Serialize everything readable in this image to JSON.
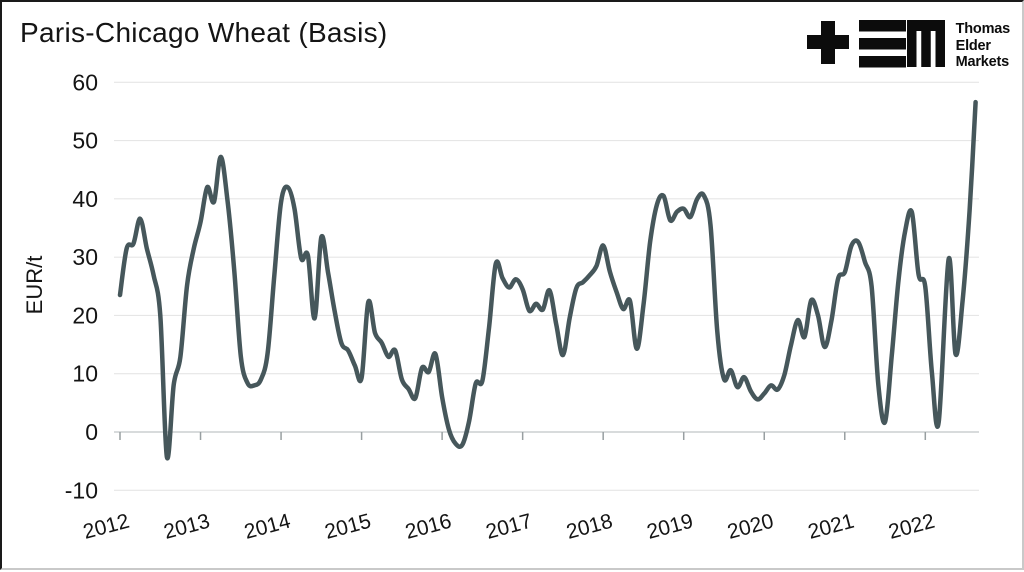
{
  "header": {
    "title": "Paris-Chicago Wheat (Basis)",
    "logo": {
      "lines": [
        "Thomas",
        "Elder",
        "Markets"
      ]
    }
  },
  "chart_data": {
    "type": "line",
    "title": "Paris-Chicago Wheat (Basis)",
    "xlabel": "",
    "ylabel": "EUR/t",
    "ylim": [
      -10,
      60
    ],
    "y_ticks": [
      60,
      50,
      40,
      30,
      20,
      10,
      0,
      -10
    ],
    "x_ticks": [
      2012,
      2013,
      2014,
      2015,
      2016,
      2017,
      2018,
      2019,
      2020,
      2021,
      2022
    ],
    "grid": "horizontal",
    "legend": "none",
    "colors": {
      "line": "#46575b",
      "grid": "#e6e6e6",
      "axis": "#cbcfd0",
      "tick": "#989fa1",
      "text": "#141414"
    },
    "series": [
      {
        "name": "Paris-Chicago wheat basis (EUR/t)",
        "points": [
          [
            2012.0,
            23.5
          ],
          [
            2012.083,
            31.5
          ],
          [
            2012.167,
            32.3
          ],
          [
            2012.25,
            36.6
          ],
          [
            2012.333,
            31.5
          ],
          [
            2012.417,
            26.9
          ],
          [
            2012.5,
            20.0
          ],
          [
            2012.583,
            -4.3
          ],
          [
            2012.667,
            8.1
          ],
          [
            2012.75,
            12.9
          ],
          [
            2012.833,
            25.2
          ],
          [
            2012.917,
            31.5
          ],
          [
            2013.0,
            36.0
          ],
          [
            2013.083,
            42.0
          ],
          [
            2013.167,
            39.5
          ],
          [
            2013.25,
            47.2
          ],
          [
            2013.333,
            40.0
          ],
          [
            2013.417,
            28.0
          ],
          [
            2013.5,
            13.0
          ],
          [
            2013.583,
            8.4
          ],
          [
            2013.667,
            8.0
          ],
          [
            2013.75,
            9.0
          ],
          [
            2013.833,
            13.5
          ],
          [
            2013.917,
            27.0
          ],
          [
            2014.0,
            39.5
          ],
          [
            2014.083,
            42.0
          ],
          [
            2014.167,
            38.3
          ],
          [
            2014.25,
            29.8
          ],
          [
            2014.333,
            30.3
          ],
          [
            2014.417,
            19.5
          ],
          [
            2014.5,
            33.4
          ],
          [
            2014.583,
            27.4
          ],
          [
            2014.667,
            20.6
          ],
          [
            2014.75,
            15.2
          ],
          [
            2014.833,
            14.0
          ],
          [
            2014.917,
            11.4
          ],
          [
            2015.0,
            9.3
          ],
          [
            2015.083,
            22.3
          ],
          [
            2015.167,
            17.0
          ],
          [
            2015.25,
            15.3
          ],
          [
            2015.333,
            12.9
          ],
          [
            2015.417,
            14.0
          ],
          [
            2015.5,
            9.0
          ],
          [
            2015.583,
            7.4
          ],
          [
            2015.667,
            5.8
          ],
          [
            2015.75,
            11.0
          ],
          [
            2015.833,
            10.3
          ],
          [
            2015.917,
            13.4
          ],
          [
            2016.0,
            6.0
          ],
          [
            2016.083,
            0.5
          ],
          [
            2016.167,
            -2.0
          ],
          [
            2016.25,
            -2.2
          ],
          [
            2016.333,
            1.7
          ],
          [
            2016.417,
            8.3
          ],
          [
            2016.5,
            8.8
          ],
          [
            2016.583,
            18.0
          ],
          [
            2016.667,
            28.9
          ],
          [
            2016.75,
            26.4
          ],
          [
            2016.833,
            24.8
          ],
          [
            2016.917,
            26.2
          ],
          [
            2017.0,
            24.5
          ],
          [
            2017.083,
            20.8
          ],
          [
            2017.167,
            22.0
          ],
          [
            2017.25,
            21.0
          ],
          [
            2017.333,
            24.3
          ],
          [
            2017.417,
            18.5
          ],
          [
            2017.5,
            13.2
          ],
          [
            2017.583,
            19.5
          ],
          [
            2017.667,
            24.7
          ],
          [
            2017.75,
            25.7
          ],
          [
            2017.833,
            26.9
          ],
          [
            2017.917,
            28.5
          ],
          [
            2018.0,
            32.0
          ],
          [
            2018.083,
            27.5
          ],
          [
            2018.167,
            24.0
          ],
          [
            2018.25,
            21.1
          ],
          [
            2018.333,
            22.5
          ],
          [
            2018.417,
            14.3
          ],
          [
            2018.5,
            21.7
          ],
          [
            2018.583,
            32.6
          ],
          [
            2018.667,
            39.0
          ],
          [
            2018.75,
            40.5
          ],
          [
            2018.833,
            36.3
          ],
          [
            2018.917,
            37.8
          ],
          [
            2019.0,
            38.3
          ],
          [
            2019.083,
            36.9
          ],
          [
            2019.167,
            40.0
          ],
          [
            2019.25,
            40.6
          ],
          [
            2019.333,
            35.5
          ],
          [
            2019.417,
            17.2
          ],
          [
            2019.5,
            9.1
          ],
          [
            2019.583,
            10.6
          ],
          [
            2019.667,
            7.7
          ],
          [
            2019.75,
            9.4
          ],
          [
            2019.833,
            7.0
          ],
          [
            2019.917,
            5.6
          ],
          [
            2020.0,
            6.6
          ],
          [
            2020.083,
            8.0
          ],
          [
            2020.167,
            7.3
          ],
          [
            2020.25,
            9.8
          ],
          [
            2020.333,
            15.0
          ],
          [
            2020.417,
            19.2
          ],
          [
            2020.5,
            16.3
          ],
          [
            2020.583,
            22.6
          ],
          [
            2020.667,
            20.0
          ],
          [
            2020.75,
            14.6
          ],
          [
            2020.833,
            19.0
          ],
          [
            2020.917,
            26.3
          ],
          [
            2021.0,
            27.4
          ],
          [
            2021.083,
            32.0
          ],
          [
            2021.167,
            32.6
          ],
          [
            2021.25,
            29.2
          ],
          [
            2021.333,
            25.0
          ],
          [
            2021.417,
            8.0
          ],
          [
            2021.5,
            1.7
          ],
          [
            2021.583,
            13.0
          ],
          [
            2021.667,
            26.0
          ],
          [
            2021.75,
            34.5
          ],
          [
            2021.833,
            37.7
          ],
          [
            2021.917,
            27.0
          ],
          [
            2022.0,
            24.9
          ],
          [
            2022.083,
            10.0
          ],
          [
            2022.167,
            1.7
          ],
          [
            2022.29,
            29.7
          ],
          [
            2022.375,
            13.4
          ],
          [
            2022.46,
            22.0
          ],
          [
            2022.55,
            38.0
          ],
          [
            2022.625,
            56.6
          ]
        ]
      }
    ]
  }
}
